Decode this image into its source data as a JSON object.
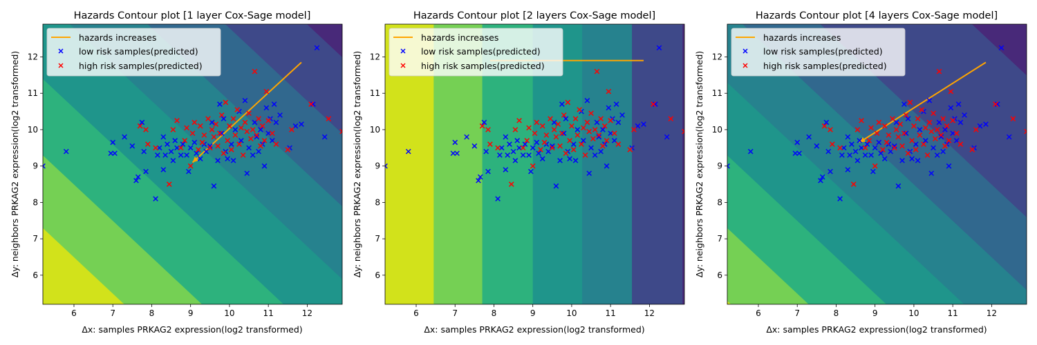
{
  "chart_data": [
    {
      "type": "scatter",
      "title": "Hazards Contour plot [1 layer Cox-Sage model]",
      "xlabel": "Δx: samples PRKAG2 expression(log2 transformed)",
      "ylabel": "Δy: neighbors PRKAG2 expression(log2 transformed)",
      "xlim": [
        5.2,
        12.9
      ],
      "ylim": [
        5.2,
        12.9
      ],
      "xticks": [
        "6",
        "7",
        "8",
        "9",
        "10",
        "11",
        "12"
      ],
      "yticks": [
        "6",
        "7",
        "8",
        "9",
        "10",
        "11",
        "12"
      ],
      "contour": {
        "style": "diagonal",
        "boundaries": [
          12.5,
          14.5,
          16.6,
          18.8,
          20.8,
          22.8,
          24.9
        ],
        "colors": [
          "#d2e21b",
          "#75d054",
          "#2db27d",
          "#1f958b",
          "#26828e",
          "#31688e",
          "#3e4989",
          "#482979"
        ]
      },
      "arrow": {
        "label": "hazards increases",
        "from": [
          11.85,
          11.85
        ],
        "to": [
          9.05,
          9.1
        ],
        "head": "to"
      }
    },
    {
      "type": "scatter",
      "title": "Hazards Contour plot [2 layers Cox-Sage model]",
      "xlabel": "Δx: samples PRKAG2 expression(log2 transformed)",
      "ylabel": "Δy: neighbors PRKAG2 expression(log2 transformed)",
      "xlim": [
        5.2,
        12.9
      ],
      "ylim": [
        5.2,
        12.9
      ],
      "xticks": [
        "6",
        "7",
        "8",
        "9",
        "10",
        "11",
        "12"
      ],
      "yticks": [
        "6",
        "7",
        "8",
        "9",
        "10",
        "11",
        "12"
      ],
      "contour": {
        "style": "vertical",
        "boundaries": [
          6.45,
          7.7,
          9.0,
          10.27,
          11.55,
          12.85
        ],
        "colors": [
          "#d2e21b",
          "#75d054",
          "#2db27d",
          "#1f958b",
          "#26828e",
          "#3e4989",
          "#482979"
        ]
      },
      "arrow": {
        "label": "hazards increases",
        "from": [
          7.9,
          11.9
        ],
        "to": [
          11.85,
          11.9
        ],
        "head": "none"
      }
    },
    {
      "type": "scatter",
      "title": "Hazards Contour plot [4 layers Cox-Sage model]",
      "xlabel": "Δx: samples PRKAG2 expression(log2 transformed)",
      "ylabel": "Δy: neighbors PRKAG2 expression(log2 transformed)",
      "xlim": [
        5.2,
        12.9
      ],
      "ylim": [
        5.2,
        12.9
      ],
      "xticks": [
        "6",
        "7",
        "8",
        "9",
        "10",
        "11",
        "12"
      ],
      "yticks": [
        "6",
        "7",
        "8",
        "9",
        "10",
        "11",
        "12"
      ],
      "contour": {
        "style": "diagonal",
        "boundaries": [
          10.5,
          12.5,
          14.5,
          16.5,
          18.5,
          20.5,
          24.4
        ],
        "colors": [
          "#d2e21b",
          "#75d054",
          "#2db27d",
          "#1f958b",
          "#26828e",
          "#31688e",
          "#3e4989",
          "#482979"
        ]
      },
      "arrow": {
        "label": "hazards increases",
        "from": [
          11.85,
          11.85
        ],
        "to": [
          8.6,
          9.65
        ],
        "head": "to"
      }
    }
  ],
  "legend": {
    "placement": "top-left",
    "line_label": "hazards increases",
    "low_label": "low risk samples(predicted)",
    "high_label": "high risk samples(predicted)"
  },
  "colors": {
    "arrow": "#ffa500",
    "low": "#0000ff",
    "high": "#ff0000"
  },
  "samples": {
    "low": [
      [
        5.2,
        9.0
      ],
      [
        5.8,
        9.4
      ],
      [
        6.95,
        9.35
      ],
      [
        7.0,
        9.65
      ],
      [
        7.05,
        9.35
      ],
      [
        7.3,
        9.8
      ],
      [
        7.5,
        9.55
      ],
      [
        7.6,
        8.6
      ],
      [
        7.65,
        8.7
      ],
      [
        7.75,
        10.2
      ],
      [
        7.8,
        9.4
      ],
      [
        7.85,
        8.85
      ],
      [
        8.1,
        8.1
      ],
      [
        8.15,
        9.3
      ],
      [
        8.2,
        9.5
      ],
      [
        8.3,
        8.9
      ],
      [
        8.3,
        9.8
      ],
      [
        8.35,
        9.3
      ],
      [
        8.4,
        9.6
      ],
      [
        8.5,
        9.4
      ],
      [
        8.55,
        9.15
      ],
      [
        8.6,
        9.7
      ],
      [
        8.65,
        9.5
      ],
      [
        8.75,
        9.3
      ],
      [
        8.8,
        9.6
      ],
      [
        8.9,
        9.3
      ],
      [
        8.95,
        8.85
      ],
      [
        9.0,
        9.5
      ],
      [
        9.1,
        9.65
      ],
      [
        9.15,
        9.35
      ],
      [
        9.25,
        9.2
      ],
      [
        9.35,
        9.6
      ],
      [
        9.4,
        9.4
      ],
      [
        9.5,
        9.55
      ],
      [
        9.55,
        10.2
      ],
      [
        9.6,
        8.45
      ],
      [
        9.7,
        9.15
      ],
      [
        9.75,
        10.7
      ],
      [
        9.8,
        9.9
      ],
      [
        9.85,
        10.3
      ],
      [
        9.9,
        9.4
      ],
      [
        9.95,
        9.2
      ],
      [
        10.05,
        9.6
      ],
      [
        10.1,
        9.15
      ],
      [
        10.15,
        10.0
      ],
      [
        10.25,
        10.5
      ],
      [
        10.3,
        9.7
      ],
      [
        10.4,
        10.8
      ],
      [
        10.45,
        8.8
      ],
      [
        10.5,
        9.5
      ],
      [
        10.6,
        9.3
      ],
      [
        10.65,
        10.2
      ],
      [
        10.7,
        9.8
      ],
      [
        10.75,
        9.4
      ],
      [
        10.8,
        10.0
      ],
      [
        10.85,
        9.6
      ],
      [
        10.9,
        9.0
      ],
      [
        10.95,
        10.6
      ],
      [
        11.0,
        9.9
      ],
      [
        11.05,
        10.3
      ],
      [
        11.1,
        9.7
      ],
      [
        11.15,
        10.7
      ],
      [
        11.2,
        10.2
      ],
      [
        11.3,
        10.4
      ],
      [
        11.55,
        9.5
      ],
      [
        11.7,
        10.1
      ],
      [
        11.85,
        10.15
      ],
      [
        12.15,
        10.7
      ],
      [
        12.25,
        12.25
      ],
      [
        12.45,
        9.8
      ]
    ],
    "high": [
      [
        7.7,
        10.1
      ],
      [
        7.85,
        10.0
      ],
      [
        7.9,
        9.6
      ],
      [
        8.1,
        9.5
      ],
      [
        8.45,
        8.5
      ],
      [
        8.55,
        10.0
      ],
      [
        8.65,
        10.25
      ],
      [
        8.75,
        9.5
      ],
      [
        8.85,
        9.7
      ],
      [
        8.9,
        10.05
      ],
      [
        9.0,
        9.0
      ],
      [
        9.05,
        9.9
      ],
      [
        9.1,
        10.2
      ],
      [
        9.2,
        9.45
      ],
      [
        9.25,
        10.1
      ],
      [
        9.3,
        9.65
      ],
      [
        9.35,
        9.85
      ],
      [
        9.45,
        10.3
      ],
      [
        9.5,
        9.5
      ],
      [
        9.55,
        10.0
      ],
      [
        9.6,
        9.8
      ],
      [
        9.65,
        10.15
      ],
      [
        9.7,
        9.55
      ],
      [
        9.75,
        9.9
      ],
      [
        9.8,
        10.4
      ],
      [
        9.85,
        9.35
      ],
      [
        9.9,
        10.75
      ],
      [
        9.95,
        9.7
      ],
      [
        10.0,
        10.1
      ],
      [
        10.05,
        9.45
      ],
      [
        10.1,
        10.3
      ],
      [
        10.15,
        9.85
      ],
      [
        10.2,
        10.55
      ],
      [
        10.25,
        9.6
      ],
      [
        10.3,
        10.05
      ],
      [
        10.35,
        9.3
      ],
      [
        10.4,
        10.2
      ],
      [
        10.45,
        9.95
      ],
      [
        10.5,
        10.45
      ],
      [
        10.55,
        9.75
      ],
      [
        10.6,
        10.0
      ],
      [
        10.65,
        11.6
      ],
      [
        10.7,
        9.85
      ],
      [
        10.75,
        10.3
      ],
      [
        10.8,
        9.55
      ],
      [
        10.85,
        10.1
      ],
      [
        10.9,
        9.7
      ],
      [
        10.95,
        11.05
      ],
      [
        11.0,
        10.25
      ],
      [
        11.1,
        9.9
      ],
      [
        11.2,
        9.6
      ],
      [
        11.5,
        9.45
      ],
      [
        11.6,
        10.0
      ],
      [
        12.1,
        10.7
      ],
      [
        12.55,
        10.3
      ],
      [
        12.9,
        9.95
      ]
    ]
  }
}
